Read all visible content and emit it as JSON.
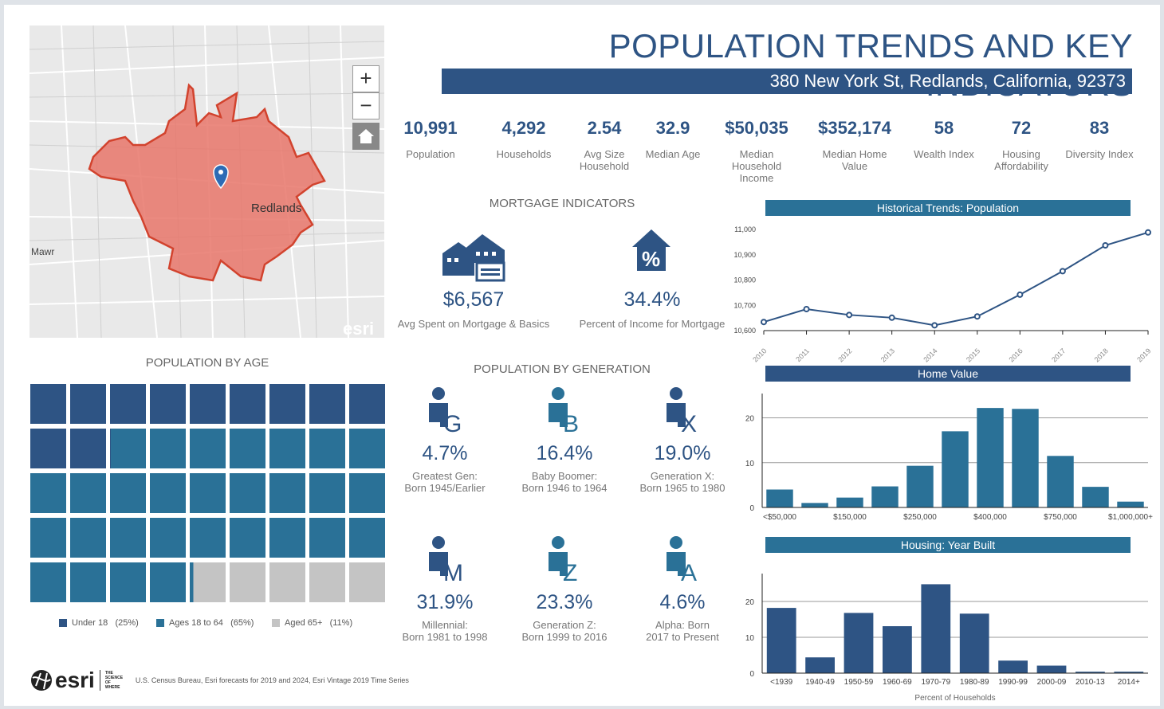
{
  "title": "POPULATION TRENDS AND KEY INDICATORS",
  "address": "380 New York St, Redlands, California, 92373",
  "map": {
    "city_label": "Redlands",
    "side_label": "Mawr",
    "zoom_in": "+",
    "zoom_out": "−",
    "home_icon": "home-icon",
    "watermark": "esri",
    "polygon_color": "#e8766a"
  },
  "stats": [
    {
      "value": "10,991",
      "label": "Population"
    },
    {
      "value": "4,292",
      "label": "Households"
    },
    {
      "value": "2.54",
      "label": "Avg Size Household"
    },
    {
      "value": "32.9",
      "label": "Median Age"
    },
    {
      "value": "$50,035",
      "label": "Median Household Income"
    },
    {
      "value": "$352,174",
      "label": "Median Home Value"
    },
    {
      "value": "58",
      "label": "Wealth Index"
    },
    {
      "value": "72",
      "label": "Housing Affordability"
    },
    {
      "value": "83",
      "label": "Diversity Index"
    }
  ],
  "mortgage": {
    "heading": "MORTGAGE INDICATORS",
    "spent_value": "$6,567",
    "spent_label": "Avg Spent on Mortgage & Basics",
    "pct_value": "34.4%",
    "pct_label": "Percent of Income for Mortgage"
  },
  "generation": {
    "heading": "POPULATION BY GENERATION",
    "items": [
      {
        "letter": "G",
        "pct": "4.7%",
        "line1": "Greatest Gen:",
        "line2": "Born 1945/Earlier"
      },
      {
        "letter": "B",
        "pct": "16.4%",
        "line1": "Baby Boomer:",
        "line2": "Born 1946 to 1964"
      },
      {
        "letter": "X",
        "pct": "19.0%",
        "line1": "Generation X:",
        "line2": "Born 1965 to 1980"
      },
      {
        "letter": "M",
        "pct": "31.9%",
        "line1": "Millennial:",
        "line2": "Born 1981 to 1998"
      },
      {
        "letter": "Z",
        "pct": "23.3%",
        "line1": "Generation Z:",
        "line2": "Born 1999 to 2016"
      },
      {
        "letter": "A",
        "pct": "4.6%",
        "line1": "Alpha:  Born",
        "line2": "2017 to Present"
      }
    ]
  },
  "age": {
    "heading": "POPULATION BY AGE",
    "groups": [
      {
        "label": "Under 18",
        "pct_label": "(25%)",
        "pct": 24.5,
        "color": "#2e5484"
      },
      {
        "label": "Ages 18 to 64",
        "pct_label": "(65%)",
        "pct": 64.6,
        "color": "#2a7197"
      },
      {
        "label": "Aged 65+",
        "pct_label": "(11%)",
        "pct": 10.9,
        "color": "#c4c4c4"
      }
    ]
  },
  "footer": {
    "logo": "esri",
    "tagline": "THE SCIENCE OF WHERE",
    "source": "U.S. Census Bureau, Esri forecasts for 2019 and 2024, Esri Vintage 2019 Time Series"
  },
  "chart_data": [
    {
      "type": "line",
      "title": "Historical Trends: Population",
      "header_color": "#2a7197",
      "color": "#2e5484",
      "x": [
        "2010",
        "2011",
        "2012",
        "2013",
        "2014",
        "2015",
        "2016",
        "2017",
        "2018",
        "2019"
      ],
      "values": [
        10634,
        10685,
        10662,
        10651,
        10621,
        10656,
        10742,
        10835,
        10937,
        10988
      ],
      "ylim": [
        10600,
        11000
      ],
      "yticks": [
        "10,600",
        "10,700",
        "10,800",
        "10,900",
        "11,000"
      ],
      "grid": false
    },
    {
      "type": "bar",
      "title": "Home Value",
      "header_color": "#2e5484",
      "color": "#2a7197",
      "categories": [
        "<$50,000",
        "",
        "$150,000",
        "",
        "$250,000",
        "",
        "$400,000",
        "",
        "$750,000",
        "",
        "$1,000,000+"
      ],
      "values": [
        4.0,
        1.0,
        2.2,
        4.7,
        9.3,
        17.0,
        22.2,
        22.0,
        11.5,
        4.6,
        1.3
      ],
      "ylim": [
        0,
        24
      ],
      "yticks": [
        "0",
        "10",
        "20"
      ],
      "grid": true
    },
    {
      "type": "bar",
      "title": "Housing: Year Built",
      "header_color": "#2a7197",
      "color": "#2e5484",
      "categories": [
        "<1939",
        "1940-49",
        "1950-59",
        "1960-69",
        "1970-79",
        "1980-89",
        "1990-99",
        "2000-09",
        "2010-13",
        "2014+"
      ],
      "values": [
        18.2,
        4.4,
        16.8,
        13.1,
        24.8,
        16.6,
        3.5,
        2.1,
        0.4,
        0.4
      ],
      "ylim": [
        0,
        26
      ],
      "yticks": [
        "0",
        "10",
        "20"
      ],
      "xlabel": "Percent of Households",
      "grid": true
    }
  ]
}
